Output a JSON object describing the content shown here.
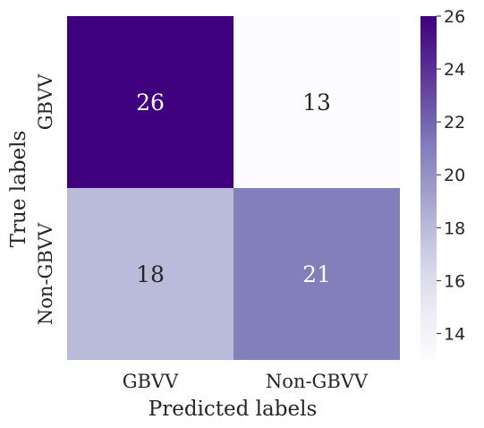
{
  "chart_data": {
    "type": "heatmap",
    "title": "",
    "xlabel": "Predicted labels",
    "ylabel": "True labels",
    "x_categories": [
      "GBVV",
      "Non-GBVV"
    ],
    "y_categories": [
      "GBVV",
      "Non-GBVV"
    ],
    "values": [
      [
        26,
        13
      ],
      [
        18,
        21
      ]
    ],
    "colormap": "Purples",
    "colorbar": {
      "range": [
        13,
        26
      ],
      "ticks": [
        "14",
        "16",
        "18",
        "20",
        "22",
        "24",
        "26"
      ]
    },
    "colors": {
      "low": "#fcfbfd",
      "high": "#3f007d",
      "text_dark": "#262626",
      "text_light": "#ffffff"
    }
  }
}
